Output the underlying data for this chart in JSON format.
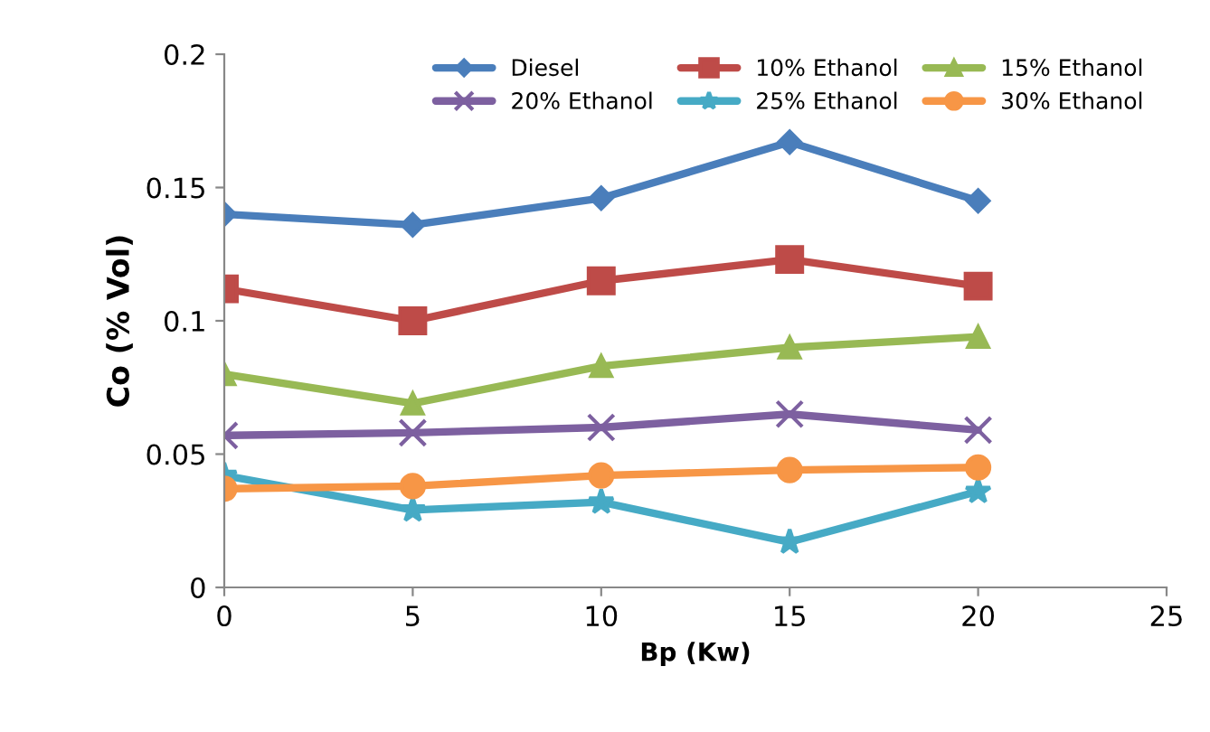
{
  "chart_data": {
    "type": "line",
    "xlabel": "Bp (Kw)",
    "ylabel": "Co (% Vol)",
    "x": [
      0,
      5,
      10,
      15,
      20
    ],
    "xlim": [
      0,
      25
    ],
    "xticks": [
      0,
      5,
      10,
      15,
      20,
      25
    ],
    "ylim": [
      0,
      0.2
    ],
    "yticks": [
      0,
      0.05,
      0.1,
      0.15,
      0.2
    ],
    "grid": false,
    "legend": "top",
    "series": [
      {
        "name": "Diesel",
        "color": "#4a7ebb",
        "marker": "diamond",
        "values": [
          0.14,
          0.136,
          0.146,
          0.167,
          0.145
        ]
      },
      {
        "name": "10% Ethanol",
        "color": "#be4b48",
        "marker": "square",
        "values": [
          0.112,
          0.1,
          0.115,
          0.123,
          0.113
        ]
      },
      {
        "name": "15% Ethanol",
        "color": "#98b954",
        "marker": "triangle",
        "values": [
          0.08,
          0.069,
          0.083,
          0.09,
          0.094
        ]
      },
      {
        "name": "20% Ethanol",
        "color": "#7d60a0",
        "marker": "cross",
        "values": [
          0.057,
          0.058,
          0.06,
          0.065,
          0.059
        ]
      },
      {
        "name": "25% Ethanol",
        "color": "#46aac5",
        "marker": "star",
        "values": [
          0.042,
          0.029,
          0.032,
          0.017,
          0.036
        ]
      },
      {
        "name": "30% Ethanol",
        "color": "#f79646",
        "marker": "circle",
        "values": [
          0.037,
          0.038,
          0.042,
          0.044,
          0.045
        ]
      }
    ]
  }
}
